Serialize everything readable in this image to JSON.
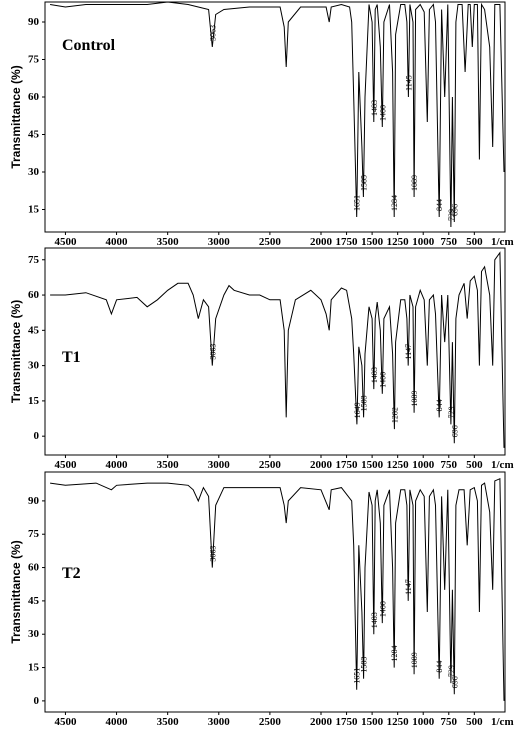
{
  "chart_data": [
    {
      "type": "line",
      "label": "Control",
      "ylabel": "Transmittance (%)",
      "x_unit": "1/cm",
      "color": "#000000",
      "xlim": [
        4700,
        200
      ],
      "ylim": [
        6,
        98
      ],
      "xticks": [
        4500,
        4000,
        3500,
        3000,
        2500,
        2000,
        1750,
        1500,
        1250,
        1000,
        750,
        500
      ],
      "yticks": [
        15,
        30,
        45,
        60,
        75,
        90
      ],
      "x": [
        4650,
        4500,
        4300,
        4000,
        3700,
        3500,
        3300,
        3200,
        3100,
        3063,
        3030,
        2950,
        2700,
        2400,
        2360,
        2340,
        2320,
        2200,
        2000,
        1950,
        1920,
        1900,
        1800,
        1720,
        1700,
        1680,
        1651,
        1630,
        1600,
        1585,
        1570,
        1530,
        1500,
        1483,
        1470,
        1450,
        1420,
        1400,
        1385,
        1330,
        1300,
        1284,
        1270,
        1220,
        1180,
        1160,
        1145,
        1130,
        1100,
        1089,
        1075,
        1030,
        990,
        960,
        940,
        900,
        880,
        844,
        820,
        790,
        760,
        729,
        715,
        696,
        680,
        660,
        620,
        590,
        560,
        540,
        520,
        500,
        470,
        450,
        430,
        400,
        350,
        320,
        300,
        250,
        210
      ],
      "values": [
        97,
        96,
        97,
        97,
        97,
        98,
        97,
        96,
        95,
        80,
        93,
        95,
        96,
        96,
        88,
        72,
        90,
        96,
        96,
        96,
        90,
        96,
        97,
        96,
        90,
        60,
        12,
        70,
        40,
        20,
        60,
        97,
        90,
        50,
        95,
        97,
        80,
        48,
        90,
        97,
        70,
        12,
        85,
        97,
        97,
        90,
        60,
        97,
        90,
        20,
        95,
        97,
        94,
        50,
        95,
        97,
        90,
        12,
        95,
        60,
        97,
        8,
        60,
        10,
        90,
        97,
        97,
        70,
        97,
        97,
        80,
        97,
        97,
        35,
        97,
        95,
        80,
        40,
        97,
        97,
        30
      ],
      "peaks": [
        3063,
        1651,
        1585,
        1483,
        1400,
        1284,
        1145,
        1089,
        844,
        729,
        696
      ]
    },
    {
      "type": "line",
      "label": "T1",
      "ylabel": "Transmittance (%)",
      "x_unit": "1/cm",
      "color": "#000000",
      "xlim": [
        4700,
        200
      ],
      "ylim": [
        -8,
        80
      ],
      "xticks": [
        4500,
        4000,
        3500,
        3000,
        2500,
        2000,
        1750,
        1500,
        1250,
        1000,
        750,
        500
      ],
      "yticks": [
        0,
        15,
        30,
        45,
        60,
        75
      ],
      "x": [
        4650,
        4500,
        4300,
        4100,
        4050,
        4000,
        3800,
        3700,
        3600,
        3500,
        3400,
        3300,
        3250,
        3200,
        3150,
        3100,
        3063,
        3030,
        2950,
        2900,
        2850,
        2700,
        2600,
        2500,
        2400,
        2360,
        2340,
        2320,
        2250,
        2100,
        2000,
        1950,
        1920,
        1900,
        1800,
        1750,
        1700,
        1680,
        1649,
        1630,
        1600,
        1583,
        1570,
        1530,
        1500,
        1483,
        1470,
        1450,
        1420,
        1400,
        1385,
        1330,
        1300,
        1282,
        1270,
        1220,
        1180,
        1160,
        1147,
        1130,
        1100,
        1089,
        1075,
        1030,
        990,
        960,
        940,
        900,
        880,
        844,
        820,
        790,
        760,
        729,
        715,
        696,
        680,
        650,
        600,
        570,
        540,
        500,
        470,
        450,
        430,
        400,
        350,
        320,
        300,
        250,
        210
      ],
      "values": [
        60,
        60,
        61,
        58,
        52,
        58,
        59,
        55,
        58,
        62,
        65,
        65,
        60,
        50,
        58,
        55,
        30,
        50,
        60,
        64,
        62,
        60,
        60,
        58,
        58,
        45,
        8,
        45,
        58,
        62,
        58,
        52,
        45,
        58,
        63,
        62,
        50,
        35,
        5,
        38,
        30,
        8,
        35,
        55,
        50,
        20,
        50,
        57,
        45,
        18,
        50,
        55,
        35,
        3,
        40,
        58,
        58,
        50,
        30,
        60,
        55,
        10,
        55,
        62,
        58,
        30,
        58,
        60,
        52,
        8,
        60,
        40,
        60,
        5,
        40,
        -3,
        50,
        60,
        65,
        50,
        66,
        68,
        62,
        30,
        70,
        72,
        60,
        30,
        75,
        78,
        -5
      ],
      "peaks": [
        3063,
        1649,
        1583,
        1483,
        1400,
        1282,
        1147,
        1089,
        844,
        729,
        696
      ]
    },
    {
      "type": "line",
      "label": "T2",
      "ylabel": "Transmittance (%)",
      "x_unit": "1/cm",
      "color": "#000000",
      "xlim": [
        4700,
        200
      ],
      "ylim": [
        -5,
        103
      ],
      "xticks": [
        4500,
        4000,
        3500,
        3000,
        2500,
        2000,
        1750,
        1500,
        1250,
        1000,
        750,
        500
      ],
      "yticks": [
        0,
        15,
        30,
        45,
        60,
        75,
        90
      ],
      "x": [
        4650,
        4500,
        4200,
        4050,
        4000,
        3700,
        3500,
        3300,
        3250,
        3200,
        3150,
        3100,
        3063,
        3030,
        2950,
        2700,
        2400,
        2360,
        2340,
        2320,
        2200,
        2000,
        1920,
        1900,
        1800,
        1700,
        1680,
        1651,
        1630,
        1600,
        1583,
        1570,
        1530,
        1500,
        1483,
        1470,
        1450,
        1420,
        1400,
        1385,
        1330,
        1300,
        1284,
        1270,
        1220,
        1180,
        1160,
        1147,
        1130,
        1100,
        1089,
        1075,
        1030,
        990,
        960,
        940,
        900,
        880,
        844,
        820,
        790,
        760,
        729,
        715,
        696,
        680,
        650,
        600,
        570,
        540,
        500,
        470,
        450,
        430,
        400,
        350,
        320,
        300,
        250,
        210
      ],
      "values": [
        98,
        97,
        98,
        95,
        97,
        98,
        98,
        97,
        95,
        90,
        96,
        92,
        60,
        88,
        96,
        96,
        96,
        88,
        80,
        90,
        96,
        95,
        86,
        95,
        96,
        90,
        70,
        5,
        70,
        40,
        10,
        60,
        94,
        88,
        30,
        90,
        95,
        80,
        35,
        88,
        95,
        60,
        15,
        80,
        95,
        95,
        88,
        45,
        95,
        88,
        12,
        90,
        95,
        92,
        40,
        92,
        95,
        88,
        10,
        92,
        50,
        95,
        8,
        50,
        3,
        88,
        95,
        95,
        70,
        95,
        96,
        90,
        40,
        97,
        98,
        85,
        50,
        99,
        100,
        0
      ],
      "peaks": [
        3063,
        1651,
        1583,
        1483,
        1400,
        1284,
        1147,
        1089,
        844,
        729,
        696
      ]
    }
  ]
}
